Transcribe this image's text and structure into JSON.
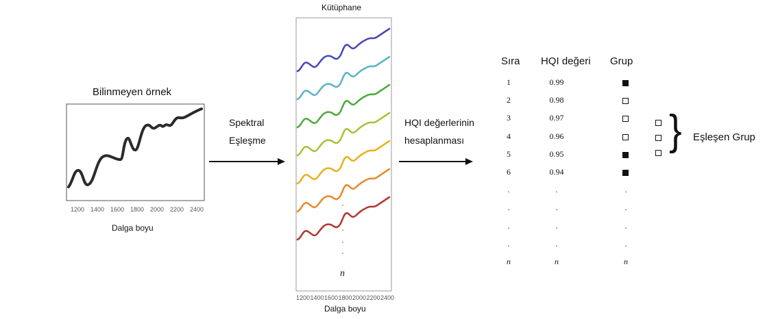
{
  "unknown_sample": {
    "title": "Bilinmeyen örnek",
    "xlabel": "Dalga boyu",
    "ticks": [
      "1200",
      "1400",
      "1600",
      "1800",
      "2000",
      "2200",
      "2400"
    ]
  },
  "arrow1": {
    "line1": "Spektral",
    "line2": "Eşleşme"
  },
  "library": {
    "title": "Kütüphane",
    "xlabel": "Dalga boyu",
    "n_label": "n",
    "ticks": [
      "1200",
      "1400",
      "1600",
      "1800",
      "2000",
      "2200",
      "2400"
    ],
    "spectra_colors": [
      "#4a4ab8",
      "#5fb3c6",
      "#4faa3d",
      "#a9c23a",
      "#e8b21e",
      "#e98a2c",
      "#b03a30"
    ]
  },
  "arrow2": {
    "line1": "HQI değerlerinin",
    "line2": "hesaplanması"
  },
  "table": {
    "headers": [
      "Sıra",
      "HQI değeri",
      "Grup"
    ],
    "rows": [
      {
        "rank": "1",
        "hqi": "0.99",
        "group": "filled"
      },
      {
        "rank": "2",
        "hqi": "0.98",
        "group": "empty"
      },
      {
        "rank": "3",
        "hqi": "0.97",
        "group": "empty"
      },
      {
        "rank": "4",
        "hqi": "0.96",
        "group": "empty"
      },
      {
        "rank": "5",
        "hqi": "0.95",
        "group": "filled"
      },
      {
        "rank": "6",
        "hqi": "0.94",
        "group": "filled"
      },
      {
        "rank": ".",
        "hqi": ".",
        "group": "."
      },
      {
        "rank": ".",
        "hqi": ".",
        "group": "."
      },
      {
        "rank": ".",
        "hqi": ".",
        "group": "."
      },
      {
        "rank": ".",
        "hqi": ".",
        "group": "."
      },
      {
        "rank": "n",
        "hqi": "n",
        "group": "n"
      }
    ]
  },
  "matching_group": {
    "label": "Eşleşen Grup",
    "brace": "}"
  }
}
